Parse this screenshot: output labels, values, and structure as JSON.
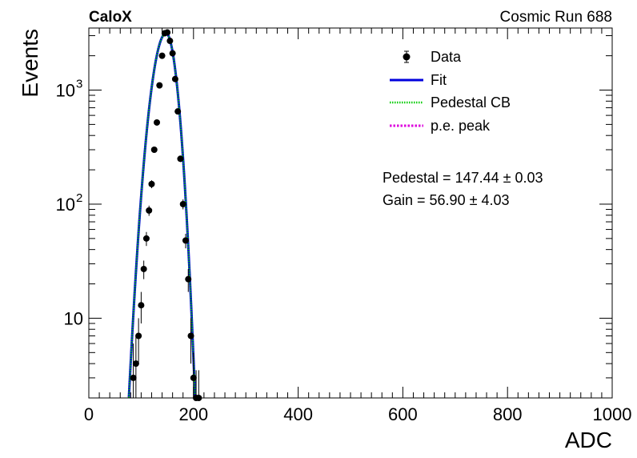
{
  "chart_data": {
    "type": "scatter",
    "experiment_label": "CaloX",
    "run_label": "Cosmic Run 688",
    "xlabel": "ADC",
    "ylabel": "Events",
    "xlim": [
      0,
      1000
    ],
    "ylim": [
      2,
      3500
    ],
    "yscale": "log",
    "x_ticks": [
      0,
      200,
      400,
      600,
      800,
      1000
    ],
    "x_tick_labels": [
      "0",
      "200",
      "400",
      "600",
      "800",
      "1000"
    ],
    "y_ticks": [
      10,
      100,
      1000
    ],
    "y_tick_labels": [
      "10",
      "10",
      "10"
    ],
    "y_tick_superscripts": [
      "",
      "2",
      "3"
    ],
    "legend": {
      "position": "top-right",
      "entries": [
        {
          "label": "Data",
          "style": "marker",
          "color": "#000000"
        },
        {
          "label": "Fit",
          "style": "solid",
          "color": "#0000dd"
        },
        {
          "label": "Pedestal CB",
          "style": "dotted",
          "color": "#00cc00"
        },
        {
          "label": "p.e. peak",
          "style": "dotted",
          "color": "#dd00dd"
        }
      ]
    },
    "annotations": [
      {
        "text": "Pedestal = 147.44 ± 0.03"
      },
      {
        "text": "Gain = 56.90 ± 4.03"
      }
    ],
    "fit_curve": {
      "pedestal_mean": 147.44,
      "left_sigma": 18.5,
      "right_sigma": 14.5,
      "amplitude": 3150
    },
    "series": [
      {
        "name": "Data",
        "x": [
          80,
          85,
          90,
          95,
          100,
          105,
          110,
          115,
          120,
          125,
          130,
          135,
          140,
          145,
          150,
          155,
          160,
          165,
          170,
          175,
          180,
          185,
          190,
          195,
          200,
          205,
          210
        ],
        "y": [
          0,
          3,
          4,
          7,
          13,
          27,
          50,
          88,
          150,
          300,
          520,
          1100,
          2000,
          3150,
          3200,
          2700,
          2100,
          1250,
          650,
          250,
          100,
          48,
          22,
          7,
          3,
          2,
          2
        ],
        "yerr": [
          0,
          3,
          3,
          3,
          4,
          5,
          7,
          9,
          12,
          17,
          23,
          33,
          45,
          56,
          57,
          52,
          46,
          35,
          25,
          16,
          10,
          7,
          5,
          3,
          2,
          1.5,
          1.5
        ]
      }
    ]
  }
}
